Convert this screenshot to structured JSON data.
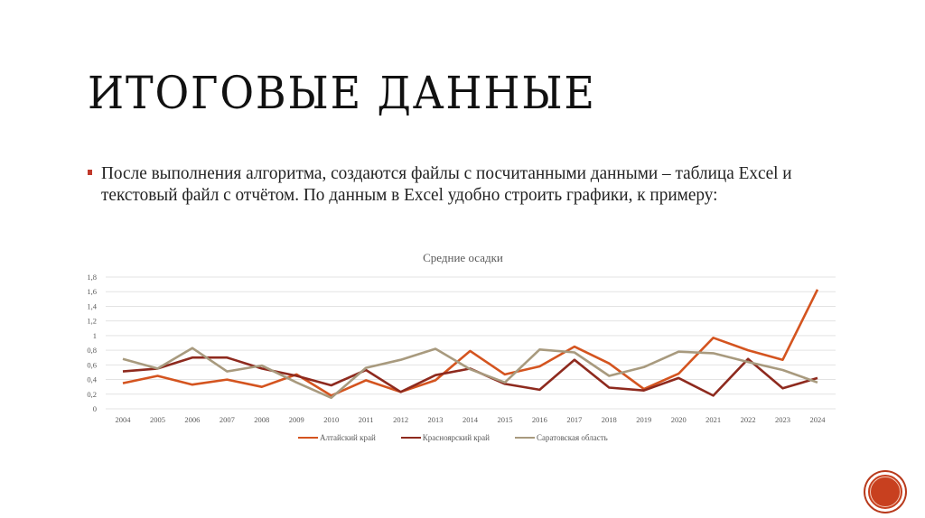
{
  "slide": {
    "title": "ИТОГОВЫЕ ДАННЫЕ",
    "bullet_text": "После выполнения алгоритма, создаются файлы с посчитанными данными – таблица Excel и текстовый файл с отчётом. По данным в Excel удобно строить графики, к примеру:",
    "accent_color": "#c0392b"
  },
  "chart_data": {
    "type": "line",
    "title": "Средние осадки",
    "xlabel": "",
    "ylabel": "",
    "ylim": [
      0,
      1.8
    ],
    "yticks": [
      "0",
      "0,2",
      "0,4",
      "0,6",
      "0,8",
      "1",
      "1,2",
      "1,4",
      "1,6",
      "1,8"
    ],
    "grid": true,
    "legend_position": "bottom",
    "x": [
      "2004",
      "2005",
      "2006",
      "2007",
      "2008",
      "2009",
      "2010",
      "2011",
      "2012",
      "2013",
      "2014",
      "2015",
      "2016",
      "2017",
      "2018",
      "2019",
      "2020",
      "2021",
      "2022",
      "2023",
      "2024"
    ],
    "series": [
      {
        "name": "Алтайский край",
        "color": "#d4541f",
        "values": [
          0.35,
          0.45,
          0.33,
          0.4,
          0.3,
          0.47,
          0.18,
          0.39,
          0.23,
          0.39,
          0.79,
          0.47,
          0.58,
          0.85,
          0.62,
          0.27,
          0.48,
          0.97,
          0.8,
          0.67,
          1.63
        ]
      },
      {
        "name": "Красноярский край",
        "color": "#8e2a1e",
        "values": [
          0.51,
          0.55,
          0.7,
          0.7,
          0.55,
          0.45,
          0.32,
          0.53,
          0.23,
          0.46,
          0.55,
          0.34,
          0.26,
          0.67,
          0.29,
          0.25,
          0.42,
          0.18,
          0.68,
          0.28,
          0.42
        ]
      },
      {
        "name": "Саратовская область",
        "color": "#a89a7e",
        "values": [
          0.68,
          0.55,
          0.83,
          0.51,
          0.59,
          0.36,
          0.15,
          0.56,
          0.67,
          0.82,
          0.54,
          0.36,
          0.81,
          0.77,
          0.45,
          0.57,
          0.78,
          0.76,
          0.64,
          0.53,
          0.36
        ]
      }
    ]
  },
  "page_badge": {
    "color": "#c8401f"
  }
}
